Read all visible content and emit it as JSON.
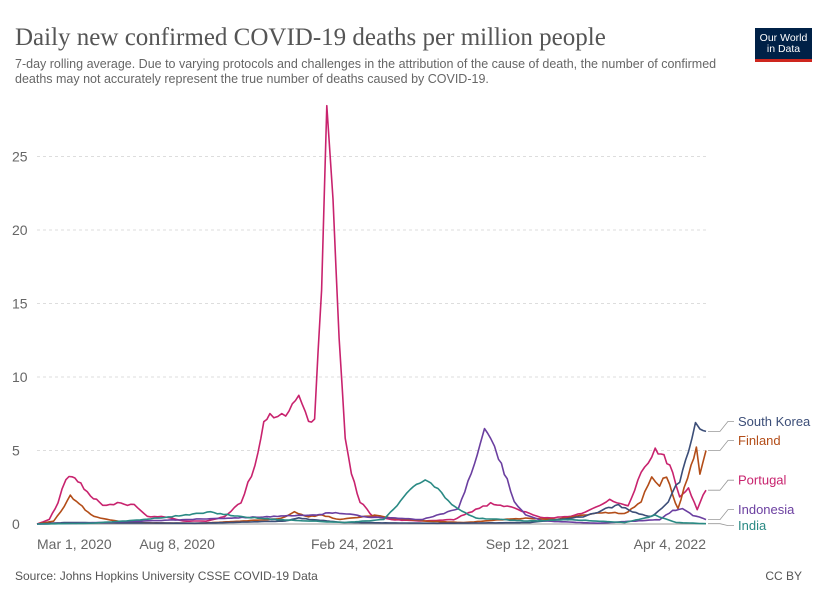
{
  "header": {
    "title": "Daily new confirmed COVID-19 deaths per million people",
    "subtitle": "7-day rolling average. Due to varying protocols and challenges in the attribution of the cause of death, the number of confirmed deaths may not accurately represent the true number of deaths caused by COVID-19.",
    "logo_line1": "Our World",
    "logo_line2": "in Data"
  },
  "footer": {
    "source": "Source: Johns Hopkins University CSSE COVID-19 Data",
    "license": "CC BY"
  },
  "colors": {
    "south_korea": "#3c4e78",
    "finland": "#b34d18",
    "portugal": "#c8236e",
    "indonesia": "#6b3fa0",
    "india": "#2a8a84",
    "grid": "#dddddd",
    "logo_bg": "#002147",
    "logo_accent": "#ce261e"
  },
  "chart_data": {
    "type": "line",
    "title": "Daily new confirmed COVID-19 deaths per million people",
    "ylim": [
      0,
      28.5
    ],
    "xlim": [
      "2020-03-01",
      "2022-04-04"
    ],
    "y_ticks": [
      0,
      5,
      10,
      15,
      20,
      25
    ],
    "x_tick_labels": [
      {
        "date": "2020-03-01",
        "label": "Mar 1, 2020"
      },
      {
        "date": "2020-08-08",
        "label": "Aug 8, 2020"
      },
      {
        "date": "2021-02-24",
        "label": "Feb 24, 2021"
      },
      {
        "date": "2021-09-12",
        "label": "Sep 12, 2021"
      },
      {
        "date": "2022-04-04",
        "label": "Apr 4, 2022"
      }
    ],
    "grid": true,
    "legend": "right, labels at line ends",
    "series": [
      {
        "name": "Portugal",
        "color_key": "portugal",
        "points": [
          [
            "2020-03-01",
            0
          ],
          [
            "2020-03-15",
            0.3
          ],
          [
            "2020-03-25",
            1.5
          ],
          [
            "2020-04-03",
            3.0
          ],
          [
            "2020-04-10",
            3.2
          ],
          [
            "2020-04-20",
            2.7
          ],
          [
            "2020-05-01",
            2.0
          ],
          [
            "2020-05-15",
            1.2
          ],
          [
            "2020-06-01",
            1.4
          ],
          [
            "2020-06-20",
            1.3
          ],
          [
            "2020-07-05",
            0.5
          ],
          [
            "2020-07-25",
            0.5
          ],
          [
            "2020-08-15",
            0.2
          ],
          [
            "2020-09-10",
            0.2
          ],
          [
            "2020-10-01",
            0.5
          ],
          [
            "2020-10-20",
            1.5
          ],
          [
            "2020-11-05",
            4.0
          ],
          [
            "2020-11-15",
            6.8
          ],
          [
            "2020-11-22",
            7.5
          ],
          [
            "2020-12-01",
            7.3
          ],
          [
            "2020-12-10",
            7.5
          ],
          [
            "2020-12-25",
            8.7
          ],
          [
            "2021-01-05",
            7.0
          ],
          [
            "2021-01-12",
            7.2
          ],
          [
            "2021-01-20",
            16.0
          ],
          [
            "2021-01-26",
            28.4
          ],
          [
            "2021-02-02",
            22.0
          ],
          [
            "2021-02-09",
            12.5
          ],
          [
            "2021-02-16",
            6.0
          ],
          [
            "2021-02-23",
            3.5
          ],
          [
            "2021-03-05",
            1.5
          ],
          [
            "2021-03-20",
            0.5
          ],
          [
            "2021-04-10",
            0.3
          ],
          [
            "2021-05-15",
            0.2
          ],
          [
            "2021-06-20",
            0.3
          ],
          [
            "2021-07-15",
            1.0
          ],
          [
            "2021-08-01",
            1.4
          ],
          [
            "2021-08-20",
            1.2
          ],
          [
            "2021-09-10",
            0.8
          ],
          [
            "2021-10-01",
            0.4
          ],
          [
            "2021-11-01",
            0.5
          ],
          [
            "2021-11-25",
            1.0
          ],
          [
            "2021-12-15",
            1.6
          ],
          [
            "2022-01-05",
            1.3
          ],
          [
            "2022-01-20",
            3.5
          ],
          [
            "2022-02-05",
            5.0
          ],
          [
            "2022-02-15",
            4.6
          ],
          [
            "2022-02-25",
            3.5
          ],
          [
            "2022-03-05",
            1.8
          ],
          [
            "2022-03-15",
            2.5
          ],
          [
            "2022-03-25",
            1.0
          ],
          [
            "2022-04-04",
            2.3
          ]
        ]
      },
      {
        "name": "Finland",
        "color_key": "finland",
        "points": [
          [
            "2020-03-01",
            0
          ],
          [
            "2020-03-20",
            0.2
          ],
          [
            "2020-04-01",
            1.2
          ],
          [
            "2020-04-08",
            1.9
          ],
          [
            "2020-04-15",
            1.5
          ],
          [
            "2020-04-25",
            1.0
          ],
          [
            "2020-05-05",
            0.5
          ],
          [
            "2020-05-20",
            0.3
          ],
          [
            "2020-06-10",
            0.1
          ],
          [
            "2020-09-01",
            0.05
          ],
          [
            "2020-11-20",
            0.3
          ],
          [
            "2020-12-05",
            0.4
          ],
          [
            "2020-12-20",
            0.8
          ],
          [
            "2021-01-05",
            0.5
          ],
          [
            "2021-01-20",
            0.6
          ],
          [
            "2021-02-10",
            0.3
          ],
          [
            "2021-03-10",
            0.5
          ],
          [
            "2021-03-25",
            0.6
          ],
          [
            "2021-04-10",
            0.4
          ],
          [
            "2021-05-20",
            0.2
          ],
          [
            "2021-07-01",
            0.1
          ],
          [
            "2021-08-15",
            0.3
          ],
          [
            "2021-09-10",
            0.4
          ],
          [
            "2021-10-15",
            0.3
          ],
          [
            "2021-11-15",
            0.6
          ],
          [
            "2021-12-10",
            0.8
          ],
          [
            "2022-01-01",
            0.7
          ],
          [
            "2022-01-20",
            1.5
          ],
          [
            "2022-02-01",
            3.2
          ],
          [
            "2022-02-10",
            2.7
          ],
          [
            "2022-02-18",
            3.2
          ],
          [
            "2022-02-25",
            2.0
          ],
          [
            "2022-03-03",
            1.0
          ],
          [
            "2022-03-10",
            2.5
          ],
          [
            "2022-03-18",
            4.0
          ],
          [
            "2022-03-24",
            5.2
          ],
          [
            "2022-03-28",
            3.5
          ],
          [
            "2022-04-04",
            5.0
          ]
        ]
      },
      {
        "name": "South Korea",
        "color_key": "south_korea",
        "points": [
          [
            "2020-03-01",
            0
          ],
          [
            "2020-04-01",
            0.1
          ],
          [
            "2020-09-01",
            0.05
          ],
          [
            "2020-12-10",
            0.2
          ],
          [
            "2020-12-25",
            0.4
          ],
          [
            "2021-01-10",
            0.3
          ],
          [
            "2021-02-15",
            0.1
          ],
          [
            "2021-06-01",
            0.05
          ],
          [
            "2021-09-15",
            0.1
          ],
          [
            "2021-11-15",
            0.5
          ],
          [
            "2021-12-10",
            1.0
          ],
          [
            "2021-12-25",
            1.3
          ],
          [
            "2022-01-10",
            0.8
          ],
          [
            "2022-02-01",
            0.5
          ],
          [
            "2022-02-20",
            1.5
          ],
          [
            "2022-03-05",
            3.0
          ],
          [
            "2022-03-15",
            5.0
          ],
          [
            "2022-03-23",
            6.9
          ],
          [
            "2022-03-28",
            6.4
          ],
          [
            "2022-04-04",
            6.3
          ]
        ]
      },
      {
        "name": "Indonesia",
        "color_key": "indonesia",
        "points": [
          [
            "2020-03-01",
            0
          ],
          [
            "2020-04-15",
            0.05
          ],
          [
            "2020-07-01",
            0.2
          ],
          [
            "2020-10-01",
            0.4
          ],
          [
            "2021-01-10",
            0.6
          ],
          [
            "2021-02-05",
            0.8
          ],
          [
            "2021-03-10",
            0.5
          ],
          [
            "2021-05-15",
            0.3
          ],
          [
            "2021-06-25",
            1.0
          ],
          [
            "2021-07-10",
            3.5
          ],
          [
            "2021-07-20",
            5.5
          ],
          [
            "2021-07-25",
            6.4
          ],
          [
            "2021-08-01",
            6.0
          ],
          [
            "2021-08-10",
            4.5
          ],
          [
            "2021-08-20",
            3.0
          ],
          [
            "2021-08-28",
            1.5
          ],
          [
            "2021-09-10",
            0.6
          ],
          [
            "2021-10-01",
            0.2
          ],
          [
            "2021-12-01",
            0.05
          ],
          [
            "2022-02-10",
            0.3
          ],
          [
            "2022-02-25",
            0.9
          ],
          [
            "2022-03-08",
            1.0
          ],
          [
            "2022-03-20",
            0.6
          ],
          [
            "2022-04-04",
            0.3
          ]
        ]
      },
      {
        "name": "India",
        "color_key": "india",
        "points": [
          [
            "2020-03-01",
            0
          ],
          [
            "2020-05-01",
            0.05
          ],
          [
            "2020-07-01",
            0.3
          ],
          [
            "2020-09-15",
            0.8
          ],
          [
            "2020-10-20",
            0.5
          ],
          [
            "2020-12-01",
            0.3
          ],
          [
            "2021-02-15",
            0.1
          ],
          [
            "2021-04-01",
            0.3
          ],
          [
            "2021-04-20",
            1.5
          ],
          [
            "2021-05-05",
            2.6
          ],
          [
            "2021-05-15",
            2.9
          ],
          [
            "2021-05-25",
            2.8
          ],
          [
            "2021-06-10",
            1.8
          ],
          [
            "2021-06-25",
            1.0
          ],
          [
            "2021-07-15",
            0.4
          ],
          [
            "2021-09-12",
            0.2
          ],
          [
            "2021-11-01",
            0.3
          ],
          [
            "2022-01-01",
            0.1
          ],
          [
            "2022-01-25",
            0.4
          ],
          [
            "2022-02-05",
            0.6
          ],
          [
            "2022-03-01",
            0.1
          ],
          [
            "2022-04-04",
            0.02
          ]
        ]
      }
    ]
  }
}
